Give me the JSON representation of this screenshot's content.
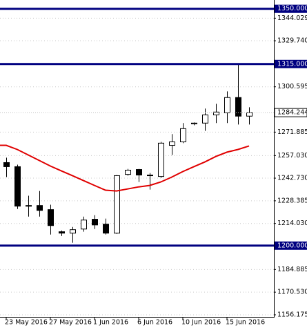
{
  "chart_data": {
    "type": "candlestick",
    "categories": [
      "23 May 2016",
      null,
      null,
      null,
      "27 May 2016",
      null,
      null,
      null,
      "1 Jun 2016",
      null,
      null,
      null,
      "6 Jun 2016",
      null,
      null,
      null,
      "10 Jun 2016",
      null,
      null,
      null,
      "15 Jun 2016",
      null,
      null
    ],
    "open": [
      1252.6,
      1250.0,
      1225.4,
      1225.4,
      1222.8,
      1208.8,
      1207.9,
      1210.5,
      1216.7,
      1213.6,
      1207.9,
      1245.1,
      1248.2,
      1244.3,
      1243.8,
      1263.5,
      1265.7,
      1277.1,
      1277.6,
      1282.8,
      1284.1,
      1293.8,
      1282.0
    ],
    "high": [
      1255.7,
      1251.3,
      1231.6,
      1234.6,
      1225.9,
      1209.6,
      1211.8,
      1218.4,
      1219.3,
      1217.1,
      1244.7,
      1248.6,
      1248.6,
      1246.0,
      1265.7,
      1270.6,
      1277.6,
      1278.0,
      1286.8,
      1289.8,
      1297.7,
      1315.2,
      1287.6
    ],
    "low": [
      1243.4,
      1223.2,
      1218.4,
      1218.4,
      1207.0,
      1206.1,
      1201.8,
      1208.8,
      1210.5,
      1207.0,
      1207.4,
      1244.3,
      1240.3,
      1235.5,
      1242.9,
      1257.4,
      1264.9,
      1276.2,
      1272.7,
      1277.6,
      1277.6,
      1276.7,
      1276.7
    ],
    "close": [
      1250.0,
      1225.0,
      1225.0,
      1222.3,
      1212.7,
      1207.9,
      1210.1,
      1216.2,
      1213.1,
      1207.9,
      1244.3,
      1247.8,
      1244.7,
      1244.7,
      1264.9,
      1265.7,
      1274.1,
      1277.6,
      1282.8,
      1284.6,
      1293.8,
      1282.0,
      1284.244
    ],
    "moving_average": {
      "color": "#e00000",
      "values": [
        1263.5,
        1260.9,
        1257.4,
        1253.9,
        1250.4,
        1247.3,
        1244.3,
        1241.2,
        1238.1,
        1235.1,
        1234.6,
        1235.9,
        1237.2,
        1238.1,
        1240.3,
        1243.4,
        1246.9,
        1250.0,
        1253.0,
        1256.5,
        1259.2,
        1260.9,
        1263.1
      ]
    },
    "horizontal_lines": [
      {
        "value": 1350,
        "label": "1350.000"
      },
      {
        "value": 1315,
        "label": "1315.000"
      },
      {
        "value": 1200,
        "label": "1200.000"
      }
    ],
    "line_color": "#000080",
    "ylim": [
      1154.43,
      1355.56
    ],
    "yticks": [
      {
        "value": 1344.029,
        "label": "1344.029"
      },
      {
        "value": 1329.74,
        "label": "1329.740"
      },
      {
        "value": 1300.595,
        "label": "1300.595"
      },
      {
        "value": 1271.885,
        "label": "1271.885"
      },
      {
        "value": 1257.03,
        "label": "1257.030"
      },
      {
        "value": 1242.73,
        "label": "1242.730"
      },
      {
        "value": 1228.385,
        "label": "1228.385"
      },
      {
        "value": 1214.03,
        "label": "1214.030"
      },
      {
        "value": 1184.885,
        "label": "1184.885"
      },
      {
        "value": 1170.53,
        "label": "1170.530"
      },
      {
        "value": 1156.175,
        "label": "1156.175"
      }
    ],
    "grid": true
  }
}
